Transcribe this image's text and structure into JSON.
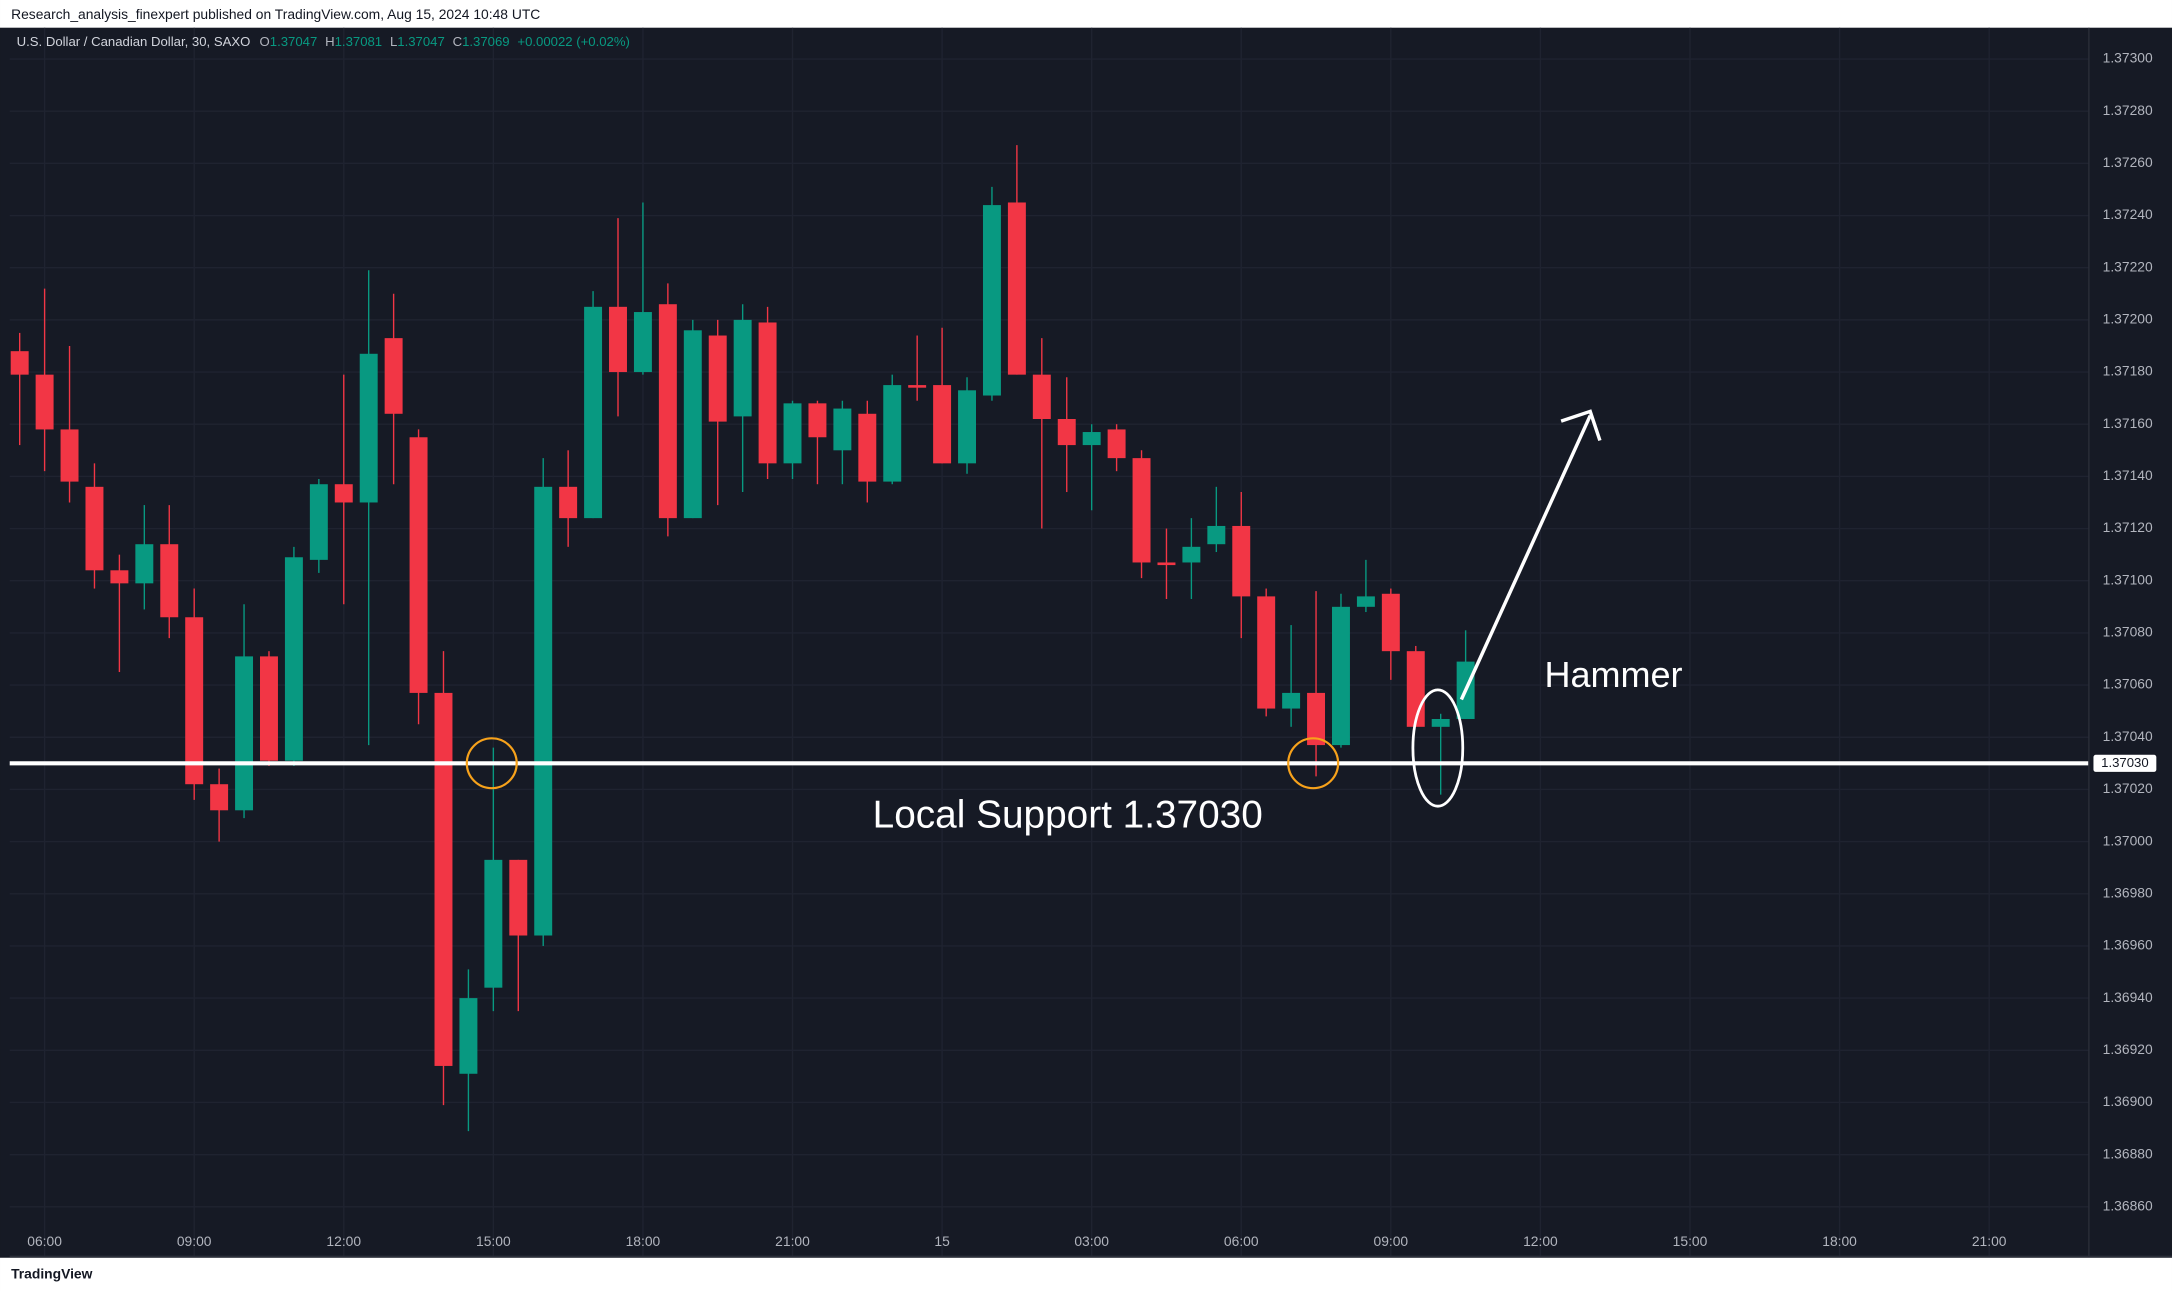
{
  "header": "Research_analysis_finexpert published on TradingView.com, Aug 15, 2024 10:48 UTC",
  "legend": {
    "symbol": "U.S. Dollar / Canadian Dollar, 30, SAXO",
    "ohlc": [
      {
        "label": "O",
        "value": 1.37047
      },
      {
        "label": "H",
        "value": 1.37081
      },
      {
        "label": "L",
        "value": 1.37047
      },
      {
        "label": "C",
        "value": 1.37069
      }
    ],
    "change": "+0.00022 (+0.02%)"
  },
  "footer": "TradingView",
  "chart_data": {
    "type": "candlestick",
    "up_color": "#089981",
    "down_color": "#f23645",
    "open": [
      1.37188,
      1.37179,
      1.37158,
      1.37136,
      1.37104,
      1.37099,
      1.37114,
      1.37086,
      1.37022,
      1.37012,
      1.37071,
      1.37031,
      1.37108,
      1.37137,
      1.3713,
      1.37193,
      1.37155,
      1.37057,
      1.36911,
      1.36944,
      1.36993,
      1.36964,
      1.37136,
      1.37124,
      1.37205,
      1.3718,
      1.37206,
      1.37124,
      1.37194,
      1.37163,
      1.37199,
      1.37145,
      1.37168,
      1.3715,
      1.37164,
      1.37138,
      1.37175,
      1.37175,
      1.37145,
      1.37171,
      1.37245,
      1.37179,
      1.37162,
      1.37152,
      1.37158,
      1.37147,
      1.37107,
      1.37107,
      1.37114,
      1.37121,
      1.37094,
      1.37051,
      1.37057,
      1.37037,
      1.3709,
      1.37095,
      1.37073,
      1.37044,
      1.37047
    ],
    "high": [
      1.37195,
      1.37212,
      1.3719,
      1.37145,
      1.3711,
      1.37129,
      1.37129,
      1.37097,
      1.37028,
      1.37091,
      1.37073,
      1.37113,
      1.37139,
      1.37179,
      1.37219,
      1.3721,
      1.37158,
      1.37073,
      1.36951,
      1.37036,
      1.36993,
      1.37147,
      1.3715,
      1.37211,
      1.37239,
      1.37245,
      1.37214,
      1.372,
      1.372,
      1.37206,
      1.37205,
      1.37169,
      1.37169,
      1.37169,
      1.37169,
      1.37179,
      1.37194,
      1.37197,
      1.37178,
      1.37251,
      1.37267,
      1.37193,
      1.37178,
      1.3716,
      1.3716,
      1.3715,
      1.3712,
      1.37124,
      1.37136,
      1.37134,
      1.37097,
      1.37083,
      1.37096,
      1.37095,
      1.37108,
      1.37097,
      1.37075,
      1.37049,
      1.37081
    ],
    "low": [
      1.37152,
      1.37142,
      1.3713,
      1.37097,
      1.37065,
      1.37089,
      1.37078,
      1.37016,
      1.37,
      1.37009,
      1.37029,
      1.37029,
      1.37103,
      1.37091,
      1.37037,
      1.37137,
      1.37045,
      1.36899,
      1.36889,
      1.36935,
      1.36935,
      1.3696,
      1.37113,
      1.37124,
      1.37163,
      1.37179,
      1.37117,
      1.37124,
      1.37129,
      1.37134,
      1.37139,
      1.37139,
      1.37137,
      1.37137,
      1.3713,
      1.37137,
      1.37169,
      1.37145,
      1.37141,
      1.37169,
      1.37179,
      1.3712,
      1.37134,
      1.37127,
      1.37142,
      1.37101,
      1.37093,
      1.37093,
      1.37111,
      1.37078,
      1.37048,
      1.37044,
      1.37025,
      1.37036,
      1.37088,
      1.37062,
      1.37044,
      1.37018,
      1.37047
    ],
    "close": [
      1.37179,
      1.37158,
      1.37138,
      1.37104,
      1.37099,
      1.37114,
      1.37086,
      1.37022,
      1.37012,
      1.37071,
      1.37031,
      1.37109,
      1.37137,
      1.3713,
      1.37187,
      1.37164,
      1.37057,
      1.36914,
      1.3694,
      1.36993,
      1.36964,
      1.37136,
      1.37124,
      1.37205,
      1.3718,
      1.37203,
      1.37124,
      1.37196,
      1.37161,
      1.372,
      1.37145,
      1.37168,
      1.37155,
      1.37166,
      1.37138,
      1.37175,
      1.37174,
      1.37145,
      1.37173,
      1.37244,
      1.37179,
      1.37162,
      1.37152,
      1.37157,
      1.37147,
      1.37107,
      1.37106,
      1.37113,
      1.37121,
      1.37094,
      1.37051,
      1.37057,
      1.37037,
      1.3709,
      1.37094,
      1.37073,
      1.37044,
      1.37047,
      1.37069
    ],
    "xlim": [
      -0.4,
      83
    ],
    "xticks": [
      {
        "value": 1,
        "label": "06:00"
      },
      {
        "value": 7,
        "label": "09:00"
      },
      {
        "value": 13,
        "label": "12:00"
      },
      {
        "value": 19,
        "label": "15:00"
      },
      {
        "value": 25,
        "label": "18:00"
      },
      {
        "value": 31,
        "label": "21:00"
      },
      {
        "value": 37,
        "label": "15"
      },
      {
        "value": 43,
        "label": "03:00"
      },
      {
        "value": 49,
        "label": "06:00"
      },
      {
        "value": 55,
        "label": "09:00"
      },
      {
        "value": 61,
        "label": "12:00"
      },
      {
        "value": 67,
        "label": "15:00"
      },
      {
        "value": 73,
        "label": "18:00"
      },
      {
        "value": 79,
        "label": "21:00"
      }
    ],
    "ylim": [
      1.36841,
      1.37312
    ],
    "yticks": [
      {
        "value": 1.373,
        "label": "1.37300"
      },
      {
        "value": 1.3728,
        "label": "1.37280"
      },
      {
        "value": 1.3726,
        "label": "1.37260"
      },
      {
        "value": 1.3724,
        "label": "1.37240"
      },
      {
        "value": 1.3722,
        "label": "1.37220"
      },
      {
        "value": 1.372,
        "label": "1.37200"
      },
      {
        "value": 1.3718,
        "label": "1.37180"
      },
      {
        "value": 1.3716,
        "label": "1.37160"
      },
      {
        "value": 1.3714,
        "label": "1.37140"
      },
      {
        "value": 1.3712,
        "label": "1.37120"
      },
      {
        "value": 1.371,
        "label": "1.37100"
      },
      {
        "value": 1.3708,
        "label": "1.37080"
      },
      {
        "value": 1.3706,
        "label": "1.37060"
      },
      {
        "value": 1.3704,
        "label": "1.37040"
      },
      {
        "value": 1.3702,
        "label": "1.37020"
      },
      {
        "value": 1.37,
        "label": "1.37000"
      },
      {
        "value": 1.3698,
        "label": "1.36980"
      },
      {
        "value": 1.3696,
        "label": "1.36960"
      },
      {
        "value": 1.3694,
        "label": "1.36940"
      },
      {
        "value": 1.3692,
        "label": "1.36920"
      },
      {
        "value": 1.369,
        "label": "1.36900"
      },
      {
        "value": 1.3688,
        "label": "1.36880"
      },
      {
        "value": 1.3686,
        "label": "1.36860"
      }
    ],
    "grid": true,
    "support": {
      "value": 1.3703,
      "label": "1.37030"
    },
    "annotations": [
      "Local Support 1.37030",
      "Hammer"
    ]
  }
}
